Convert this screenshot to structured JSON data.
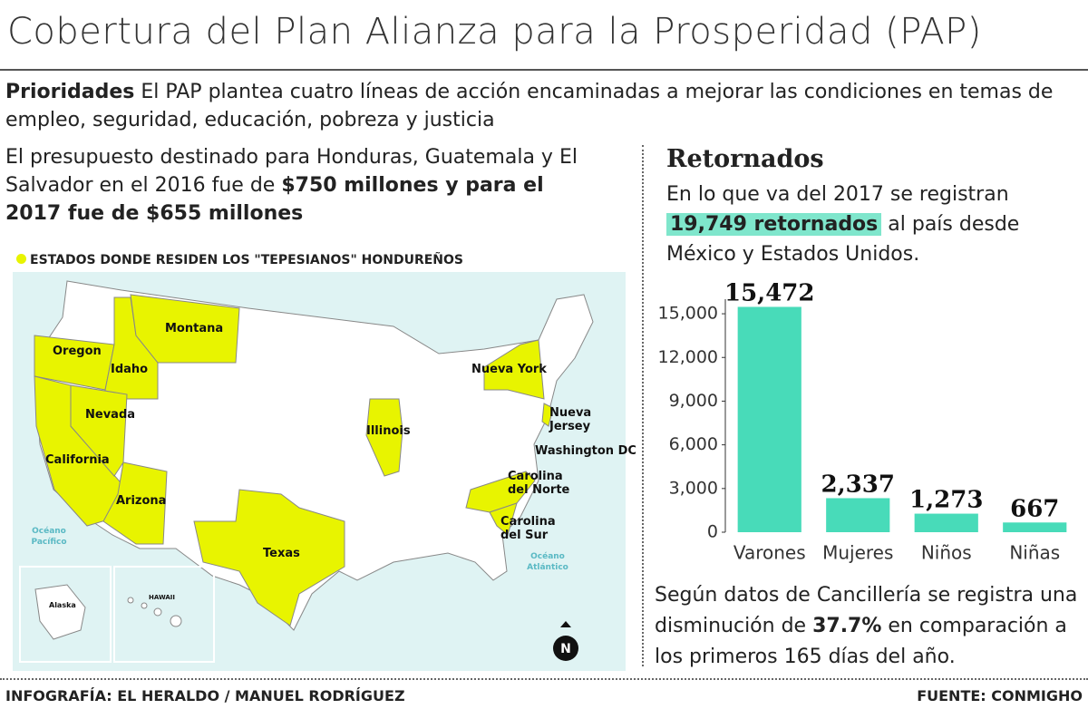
{
  "title": "Cobertura del Plan Alianza para la Prosperidad (PAP)",
  "intro": {
    "parts": [
      "Prioridades",
      "El PAP plantea cuatro líneas de acción encaminadas a mejorar las condiciones en temas de empleo, seguridad, educación, pobreza y justicia"
    ]
  },
  "budget": {
    "parts": [
      "El presupuesto destinado para Honduras, Guatemala y El Salvador en el 2016 fue de ",
      "$750 millones y para el 2017 fue de $655 millones"
    ]
  },
  "map": {
    "legend": "ESTADOS DONDE RESIDEN LOS \"TEPESIANOS\" HONDUREÑOS",
    "labels": [
      "Oregon",
      "Idaho",
      "Montana",
      "Nevada",
      "California",
      "Arizona",
      "Texas",
      "Illinois",
      "Nueva York",
      "Nueva Jersey",
      "Washington DC",
      "Carolina del Norte",
      "Carolina del Sur"
    ],
    "oceans": [
      "Océano Pacífico",
      "Océano Atlántico"
    ],
    "insets": [
      "Alaska",
      "HAWAII"
    ],
    "compass": "N"
  },
  "returnees": {
    "heading": "Retornados",
    "parts": [
      "En lo que va del 2017 se registran ",
      "19,749 retornados",
      " al país desde México y Estados Unidos."
    ]
  },
  "chart_data": {
    "type": "bar",
    "categories": [
      "Varones",
      "Mujeres",
      "Niños",
      "Niñas"
    ],
    "values": [
      15472,
      2337,
      1273,
      667
    ],
    "value_labels": [
      "15,472",
      "2,337",
      "1,273",
      "667"
    ],
    "color": "#48dbb9",
    "ylim": [
      0,
      16000
    ],
    "yticks": [
      0,
      {
        "value": 3000,
        "label": "3,000"
      },
      {
        "value": 6000,
        "label": "6,000"
      },
      {
        "value": 9000,
        "label": "9,000"
      },
      {
        "value": 12000,
        "label": "12,000"
      },
      {
        "value": 15000,
        "label": "15,000"
      }
    ],
    "grid": false
  },
  "note": {
    "parts": [
      "Según datos de Cancillería se registra una disminución de ",
      "37.7%",
      " en comparación a los primeros 165 días del año."
    ]
  },
  "footer": {
    "credit": "INFOGRAFÍA: EL HERALDO / MANUEL RODRÍGUEZ",
    "source": "FUENTE: CONMIGHO"
  }
}
